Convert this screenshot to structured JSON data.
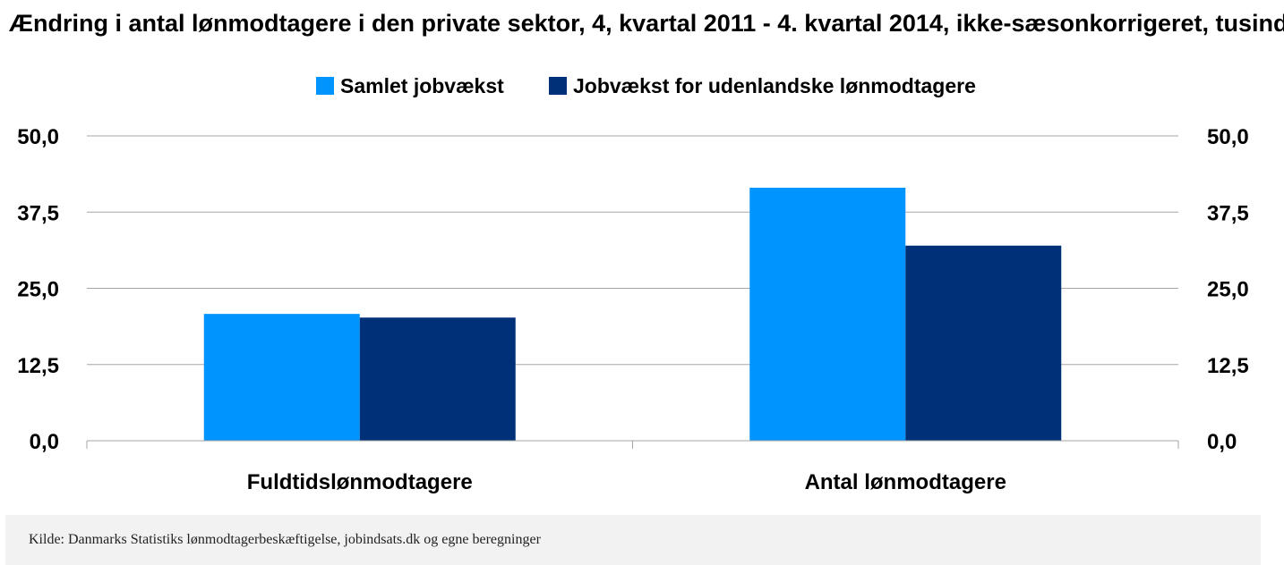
{
  "chart_data": {
    "type": "bar",
    "title": "Ændring i antal lønmodtagere i den private sektor, 4, kvartal 2011 - 4. kvartal 2014, ikke-sæsonkorrigeret, tusinder",
    "categories": [
      "Fuldtidslønmodtagere",
      "Antal lønmodtagere"
    ],
    "series": [
      {
        "name": "Samlet jobvækst",
        "values": [
          20.8,
          41.5
        ],
        "color": "#0094ff"
      },
      {
        "name": "Jobvækst for udenlandske lønmodtagere",
        "values": [
          20.2,
          32.0
        ],
        "color": "#003078"
      }
    ],
    "ylim": [
      0,
      50
    ],
    "yticks": [
      "0,0",
      "12,5",
      "25,0",
      "37,5",
      "50,0"
    ],
    "ytick_values": [
      0,
      12.5,
      25,
      37.5,
      50
    ],
    "secondary_y_axis": true,
    "grid": true,
    "legend_position": "top"
  },
  "footer": {
    "source": "Kilde: Danmarks Statistiks lønmodtagerbeskæftigelse, jobindsats.dk og egne beregninger"
  }
}
